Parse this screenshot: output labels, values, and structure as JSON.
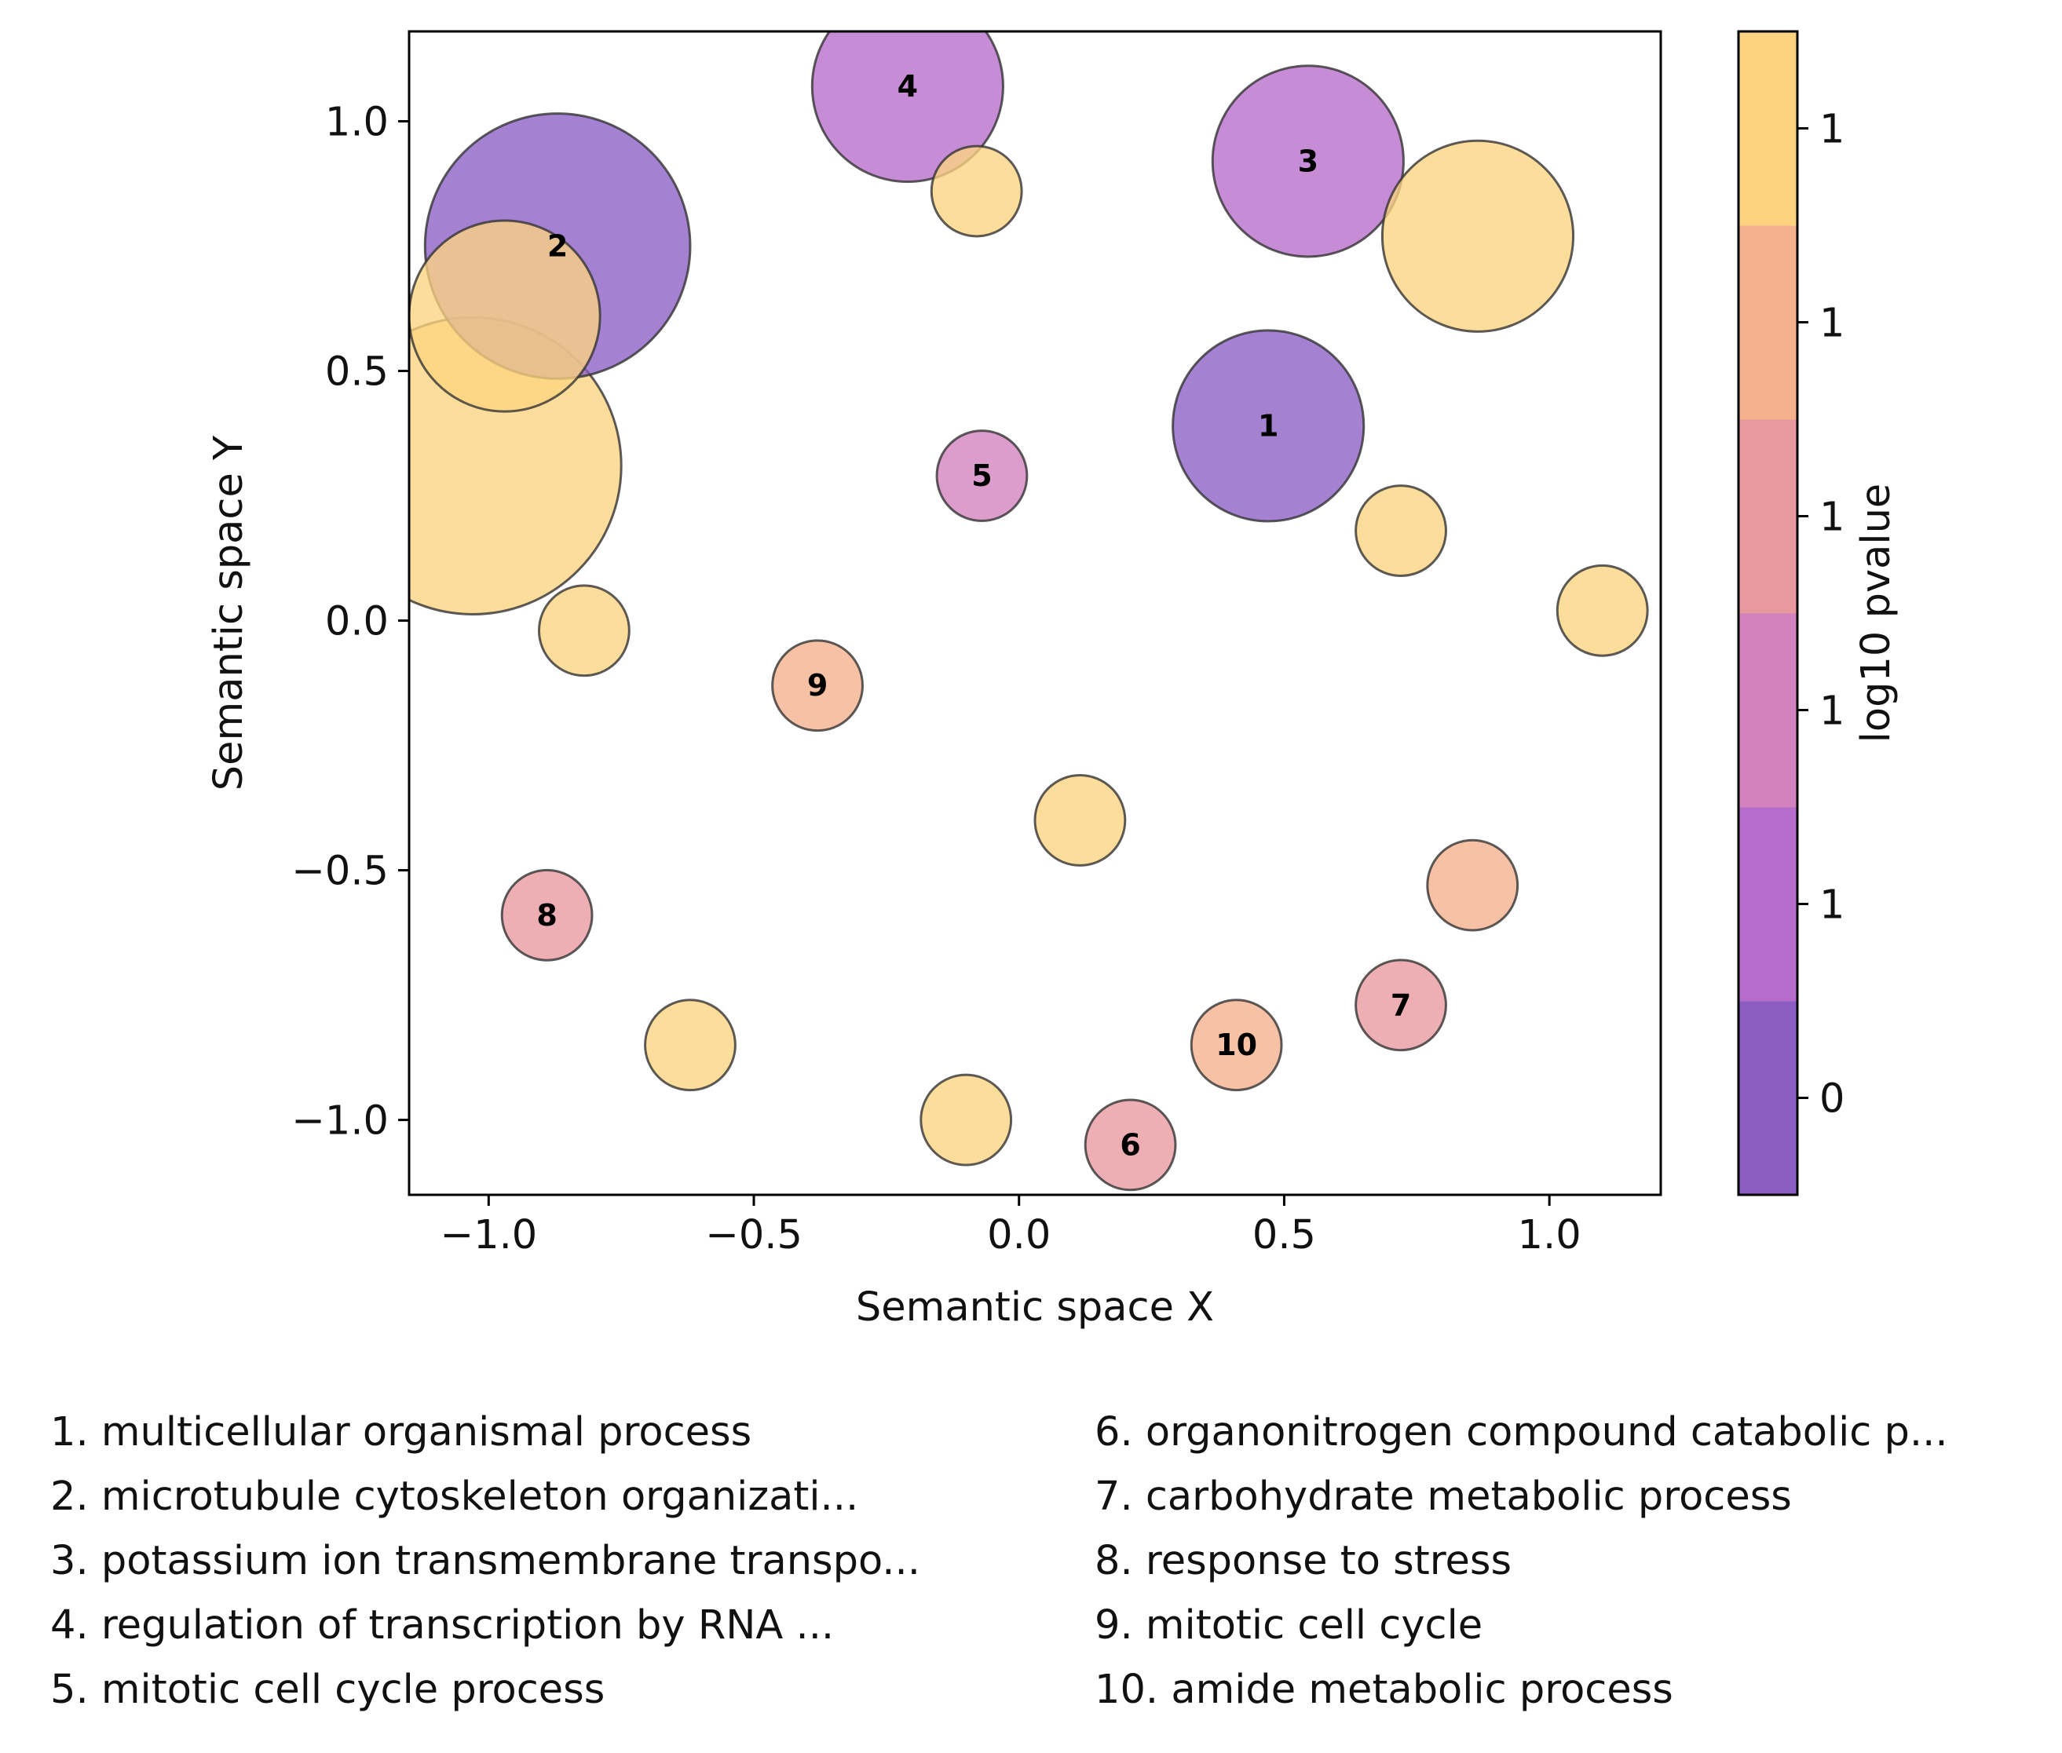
{
  "chart_data": {
    "type": "scatter",
    "xlabel": "Semantic space X",
    "ylabel": "Semantic space Y",
    "xlim": [
      -1.15,
      1.21
    ],
    "ylim": [
      -1.15,
      1.18
    ],
    "xticks": [
      {
        "value": -1.0,
        "label": "−1.0"
      },
      {
        "value": -0.5,
        "label": "−0.5"
      },
      {
        "value": 0.0,
        "label": "0.0"
      },
      {
        "value": 0.5,
        "label": "0.5"
      },
      {
        "value": 1.0,
        "label": "1.0"
      }
    ],
    "yticks": [
      {
        "value": -1.0,
        "label": "−1.0"
      },
      {
        "value": -0.5,
        "label": "−0.5"
      },
      {
        "value": 0.0,
        "label": "0.0"
      },
      {
        "value": 0.5,
        "label": "0.5"
      },
      {
        "value": 1.0,
        "label": "1.0"
      }
    ],
    "grid": false,
    "colorbar": {
      "label": "log10 pvalue",
      "bands": [
        {
          "color": "#8b5ec4",
          "label": "0"
        },
        {
          "color": "#b66ccb",
          "label": "1"
        },
        {
          "color": "#d282be",
          "label": "1"
        },
        {
          "color": "#e8999f",
          "label": "1"
        },
        {
          "color": "#f5b08c",
          "label": "1"
        },
        {
          "color": "#fdd380",
          "label": "1"
        }
      ]
    },
    "points": [
      {
        "x": -1.03,
        "y": 0.31,
        "r": 0.28,
        "color": "#fdd380",
        "label": ""
      },
      {
        "x": -0.87,
        "y": 0.75,
        "r": 0.25,
        "color": "#8b5ec4",
        "label": "2"
      },
      {
        "x": -0.97,
        "y": 0.61,
        "r": 0.18,
        "color": "#fdd380",
        "label": ""
      },
      {
        "x": -0.82,
        "y": -0.02,
        "r": 0.085,
        "color": "#fdd380",
        "label": ""
      },
      {
        "x": -0.21,
        "y": 1.07,
        "r": 0.18,
        "color": "#b66ccb",
        "label": "4"
      },
      {
        "x": -0.08,
        "y": 0.86,
        "r": 0.085,
        "color": "#fdd380",
        "label": ""
      },
      {
        "x": 0.545,
        "y": 0.92,
        "r": 0.18,
        "color": "#b66ccb",
        "label": "3"
      },
      {
        "x": 0.865,
        "y": 0.77,
        "r": 0.18,
        "color": "#fdd380",
        "label": ""
      },
      {
        "x": 0.47,
        "y": 0.39,
        "r": 0.18,
        "color": "#8b5ec4",
        "label": "1"
      },
      {
        "x": -0.07,
        "y": 0.29,
        "r": 0.085,
        "color": "#d282be",
        "label": "5"
      },
      {
        "x": 0.72,
        "y": 0.18,
        "r": 0.085,
        "color": "#fdd380",
        "label": ""
      },
      {
        "x": 1.1,
        "y": 0.02,
        "r": 0.085,
        "color": "#fdd380",
        "label": ""
      },
      {
        "x": -0.38,
        "y": -0.13,
        "r": 0.085,
        "color": "#f5b08c",
        "label": "9"
      },
      {
        "x": 0.115,
        "y": -0.4,
        "r": 0.085,
        "color": "#fdd380",
        "label": ""
      },
      {
        "x": 0.855,
        "y": -0.53,
        "r": 0.085,
        "color": "#f5b08c",
        "label": ""
      },
      {
        "x": -0.89,
        "y": -0.59,
        "r": 0.085,
        "color": "#e8999f",
        "label": "8"
      },
      {
        "x": 0.72,
        "y": -0.77,
        "r": 0.085,
        "color": "#e8999f",
        "label": "7"
      },
      {
        "x": -0.62,
        "y": -0.85,
        "r": 0.085,
        "color": "#fdd380",
        "label": ""
      },
      {
        "x": 0.41,
        "y": -0.85,
        "r": 0.085,
        "color": "#f5b08c",
        "label": "10"
      },
      {
        "x": -0.1,
        "y": -1.0,
        "r": 0.085,
        "color": "#fdd380",
        "label": ""
      },
      {
        "x": 0.21,
        "y": -1.05,
        "r": 0.085,
        "color": "#e8999f",
        "label": "6"
      }
    ]
  },
  "legend": {
    "col1": [
      "1. multicellular organismal process",
      "2. microtubule cytoskeleton organizati...",
      "3. potassium ion transmembrane transpo...",
      "4. regulation of transcription by RNA ...",
      "5. mitotic cell cycle process"
    ],
    "col2": [
      "6. organonitrogen compound catabolic p...",
      "7. carbohydrate metabolic process",
      "8. response to stress",
      "9. mitotic cell cycle",
      "10. amide metabolic process"
    ]
  }
}
